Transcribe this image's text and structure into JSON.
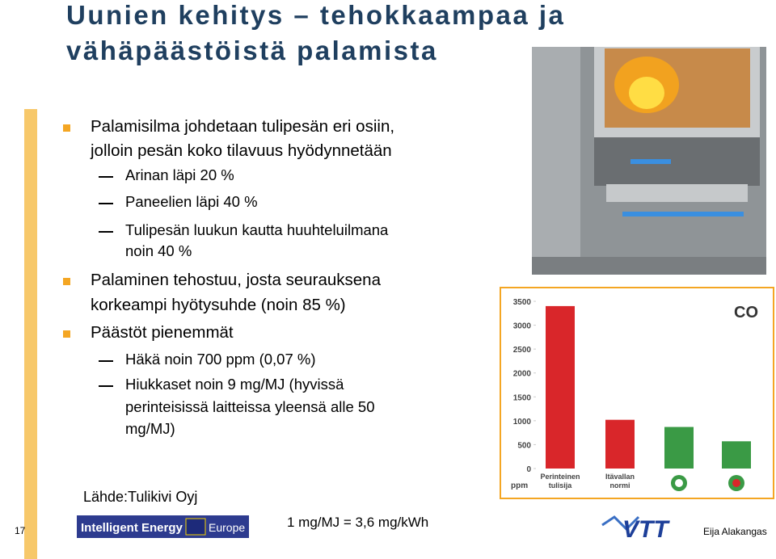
{
  "title": [
    "Uunien kehitys – tehokkaampaa ja",
    "vähäpäästöistä palamista"
  ],
  "bullets": [
    {
      "lines": [
        "Palamisilma johdetaan tulipesän eri osiin,",
        "jolloin pesän koko tilavuus hyödynnetään"
      ],
      "subs": [
        [
          "Arinan läpi 20 %"
        ],
        [
          "Paneelien läpi 40 %"
        ],
        [
          "Tulipesän luukun kautta huuhteluilmana",
          "noin 40 %"
        ]
      ]
    },
    {
      "lines": [
        "Palaminen tehostuu, josta seurauksena",
        "korkeampi hyötysuhde (noin 85 %)"
      ],
      "subs": []
    },
    {
      "lines": [
        "Päästöt pienemmät"
      ],
      "subs": [
        [
          "Häkä noin 700 ppm (0,07 %)"
        ],
        [
          "Hiukkaset noin 9 mg/MJ (hyvissä",
          "perinteisissä laitteissa yleensä alle 50",
          "mg/MJ)"
        ]
      ]
    }
  ],
  "chart": {
    "type": "bar",
    "label": "CO",
    "unit": "ppm",
    "categories": [
      "Perinteinen tulisija",
      "Itävallan normi",
      null,
      null
    ],
    "values": [
      3400,
      1020,
      870,
      570
    ],
    "colors": [
      "#d9262a",
      "#d9262a",
      "#3a9a45",
      "#3a9a45"
    ],
    "ylim": [
      0,
      3500
    ],
    "yticks": [
      0,
      500,
      1000,
      1500,
      2000,
      2500,
      3000,
      3500
    ]
  },
  "footer": {
    "source": "Lähde:Tulikivi Oyj",
    "page": "17",
    "logo": "Intelligent Energy",
    "logo_sub": "Europe",
    "conversion": "1 mg/MJ = 3,6 mg/kWh",
    "vtt": "VTT",
    "author": "Eija Alakangas"
  }
}
